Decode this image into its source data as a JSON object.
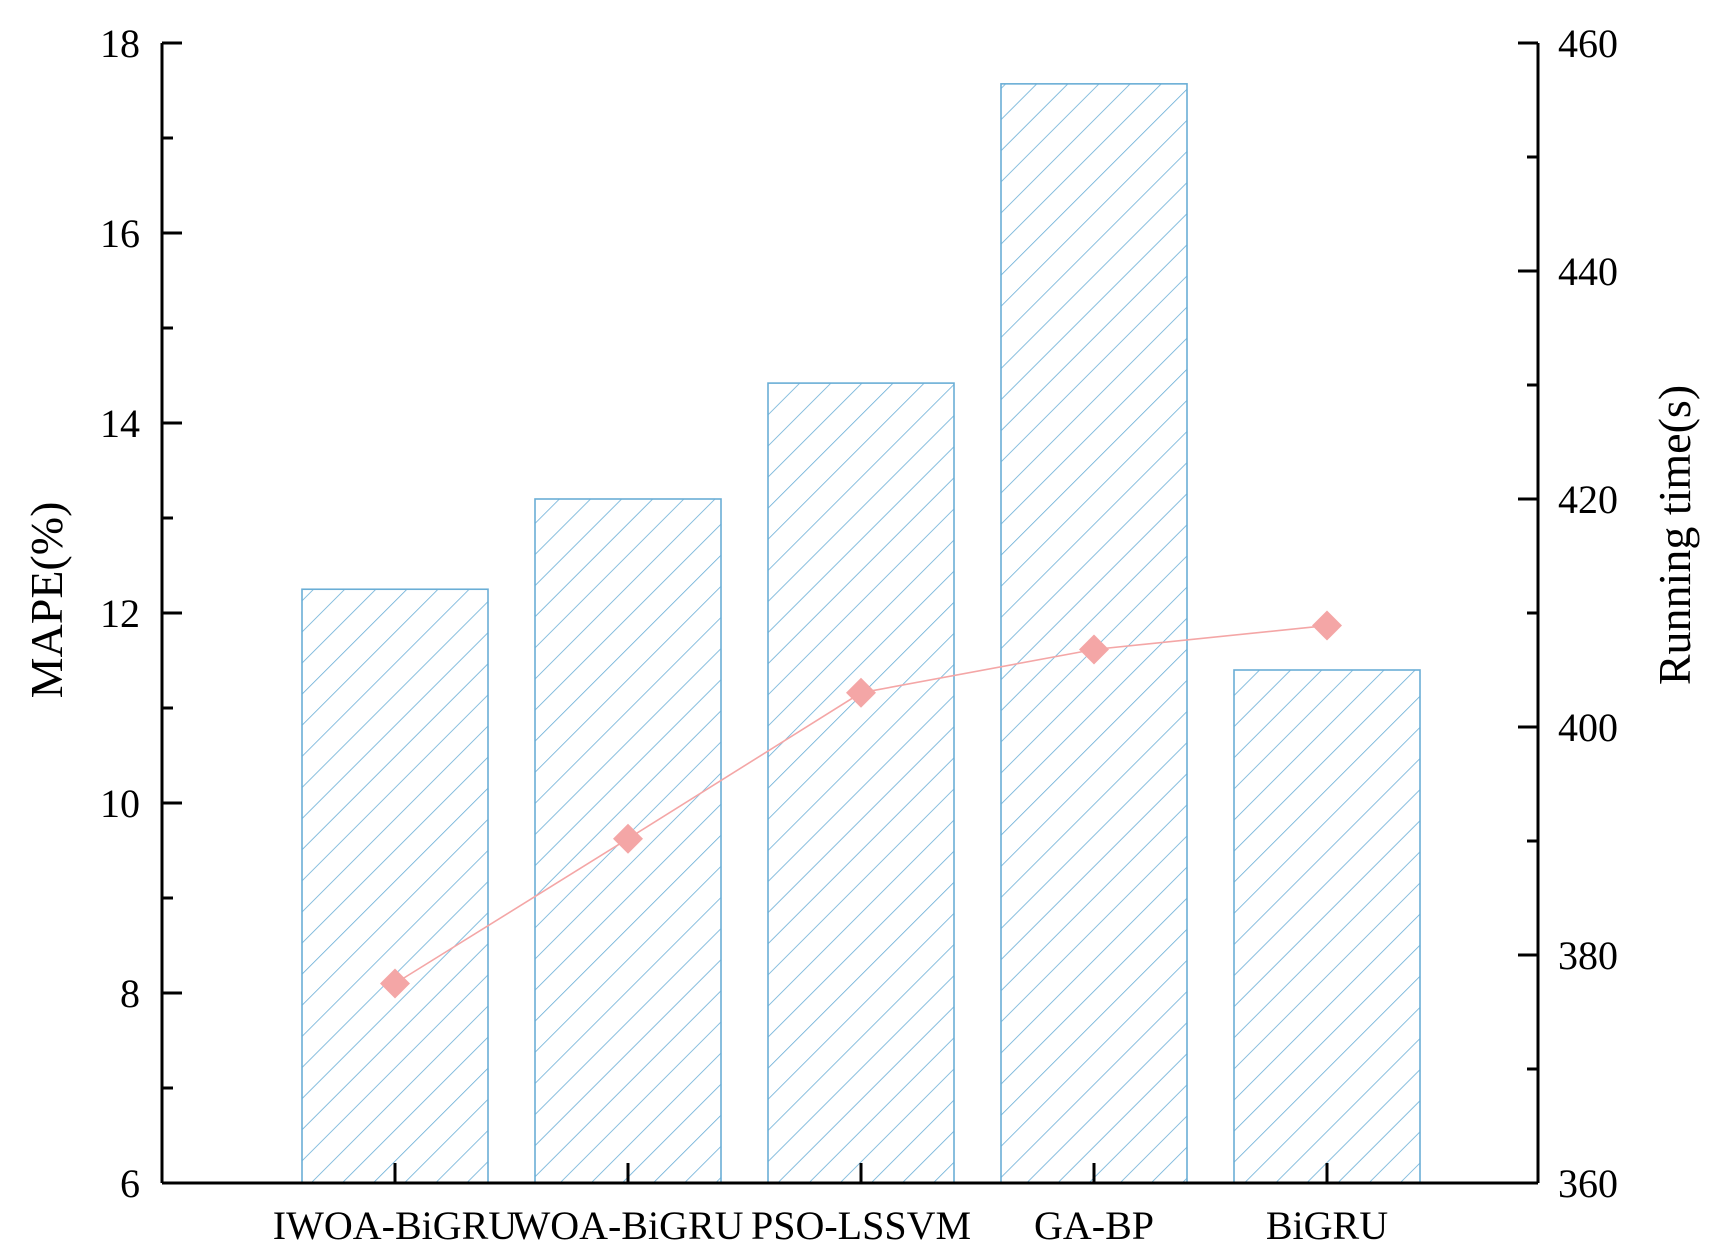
{
  "chart_data": {
    "type": "bar",
    "categories": [
      "IWOA-BiGRU",
      "WOA-BiGRU",
      "PSO-LSSVM",
      "GA-BP",
      "BiGRU"
    ],
    "series": [
      {
        "values": [
          12.25,
          13.2,
          14.42,
          17.57,
          11.4
        ],
        "axis": "left",
        "type": "bar",
        "color": "#6aaed6",
        "pattern": "diagonal-hatch"
      },
      {
        "values": [
          377.5,
          390.2,
          403.0,
          406.8,
          408.9
        ],
        "axis": "right",
        "type": "line",
        "marker": "diamond",
        "color": "#f4a6a6"
      }
    ],
    "ylabel": "MAPE(%)",
    "ylabel_right": "Running time(s)",
    "ylim": [
      6,
      18
    ],
    "ylim_right": [
      360,
      460
    ],
    "yticks": [
      "6",
      "8",
      "10",
      "12",
      "14",
      "16",
      "18"
    ],
    "yticks_right": [
      "360",
      "380",
      "400",
      "420",
      "440",
      "460"
    ],
    "grid": false,
    "legend": "none"
  }
}
